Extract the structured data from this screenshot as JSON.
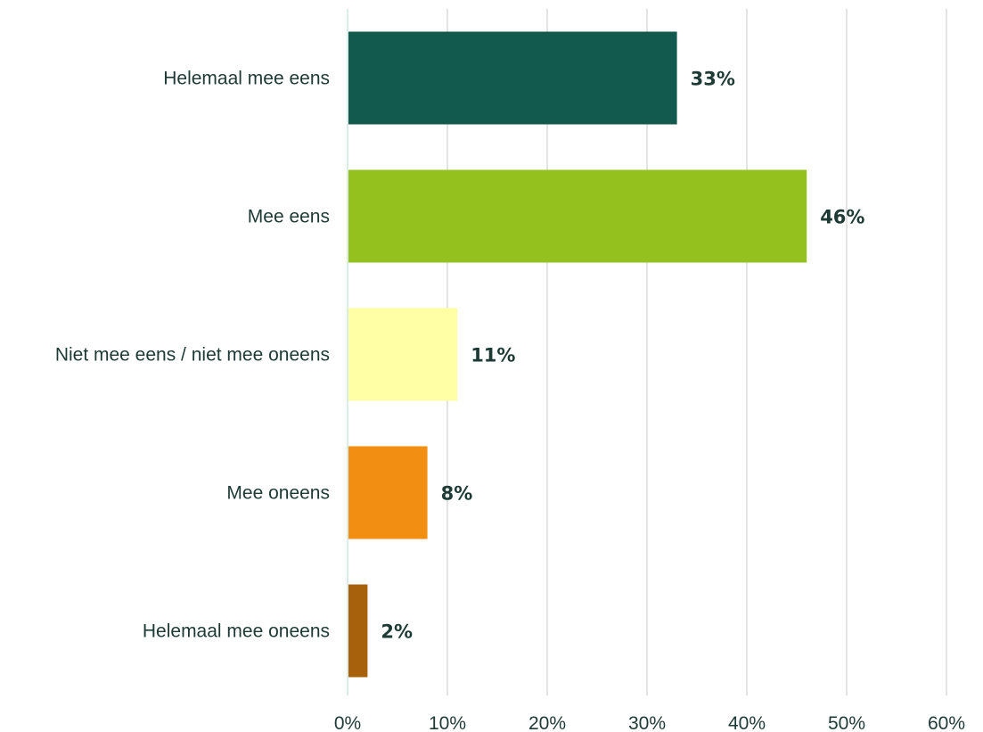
{
  "chart_data": {
    "type": "bar",
    "orientation": "horizontal",
    "categories": [
      "Helemaal mee eens",
      "Mee eens",
      "Niet mee eens / niet mee oneens",
      "Mee oneens",
      "Helemaal mee oneens"
    ],
    "values": [
      33,
      46,
      11,
      8,
      2
    ],
    "value_labels": [
      "33%",
      "46%",
      "11%",
      "8%",
      "2%"
    ],
    "colors": [
      "#135a4e",
      "#95c11f",
      "#ffffa6",
      "#f28e11",
      "#a7600b"
    ],
    "xlim": [
      0,
      60
    ],
    "xticks": [
      0,
      10,
      20,
      30,
      40,
      50,
      60
    ],
    "xtick_labels": [
      "0%",
      "10%",
      "20%",
      "30%",
      "40%",
      "50%",
      "60%"
    ],
    "grid": true,
    "title": "",
    "xlabel": "",
    "ylabel": ""
  }
}
